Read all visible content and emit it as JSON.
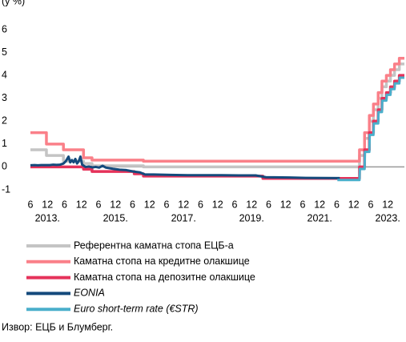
{
  "chart_data": {
    "type": "line",
    "y_label": "(у %)",
    "xlim": [
      2012.88,
      2023.87
    ],
    "ylim": [
      -1,
      6
    ],
    "yticks": [
      -1,
      0,
      1,
      2,
      3,
      4,
      5,
      6
    ],
    "xticks": [
      {
        "value": 2012.88,
        "label": "6"
      },
      {
        "value": 2013.38,
        "label": "12"
      },
      {
        "value": 2013.88,
        "label": "6"
      },
      {
        "value": 2014.38,
        "label": "12"
      },
      {
        "value": 2014.88,
        "label": "6"
      },
      {
        "value": 2015.38,
        "label": "12"
      },
      {
        "value": 2015.88,
        "label": "6"
      },
      {
        "value": 2016.38,
        "label": "12"
      },
      {
        "value": 2016.88,
        "label": "6"
      },
      {
        "value": 2017.38,
        "label": "12"
      },
      {
        "value": 2017.88,
        "label": "6"
      },
      {
        "value": 2018.38,
        "label": "12"
      },
      {
        "value": 2018.88,
        "label": "6"
      },
      {
        "value": 2019.38,
        "label": "12"
      },
      {
        "value": 2019.88,
        "label": "6"
      },
      {
        "value": 2020.38,
        "label": "12"
      },
      {
        "value": 2020.88,
        "label": "6"
      },
      {
        "value": 2021.38,
        "label": "12"
      },
      {
        "value": 2021.88,
        "label": "6"
      },
      {
        "value": 2022.38,
        "label": "12"
      },
      {
        "value": 2022.88,
        "label": "6"
      },
      {
        "value": 2023.38,
        "label": "12"
      }
    ],
    "year_labels": [
      {
        "value": 2013.38,
        "label": "2013."
      },
      {
        "value": 2015.38,
        "label": "2015."
      },
      {
        "value": 2017.38,
        "label": "2017."
      },
      {
        "value": 2019.38,
        "label": "2019."
      },
      {
        "value": 2021.38,
        "label": "2021."
      },
      {
        "value": 2023.38,
        "label": "2023."
      }
    ],
    "series": [
      {
        "name": "Референтна каматна стопа ЕЦБ-а",
        "color": "#c4c4c4",
        "step": true,
        "x": [
          2012.88,
          2013.35,
          2013.85,
          2014.44,
          2014.69,
          2016.2,
          2022.55,
          2022.7,
          2022.84,
          2022.96,
          2023.1,
          2023.21,
          2023.34,
          2023.46,
          2023.58,
          2023.72,
          2023.87
        ],
        "values": [
          0.75,
          0.5,
          0.25,
          0.15,
          0.05,
          0,
          0.5,
          1.25,
          2.0,
          2.5,
          3.0,
          3.5,
          3.75,
          4.0,
          4.25,
          4.5,
          4.5
        ]
      },
      {
        "name": "Каматна стопа на кредитне олакшице",
        "color": "#fa8089",
        "step": true,
        "x": [
          2012.88,
          2013.35,
          2013.85,
          2014.44,
          2014.69,
          2016.2,
          2022.55,
          2022.7,
          2022.84,
          2022.96,
          2023.1,
          2023.21,
          2023.34,
          2023.46,
          2023.58,
          2023.72,
          2023.87
        ],
        "values": [
          1.5,
          1.0,
          0.75,
          0.4,
          0.3,
          0.25,
          0.75,
          1.5,
          2.25,
          2.75,
          3.25,
          3.75,
          4.0,
          4.25,
          4.5,
          4.75,
          4.75
        ]
      },
      {
        "name": "Каматна стопа на депозитне олакшице",
        "color": "#e5325a",
        "step": true,
        "x": [
          2012.88,
          2014.44,
          2014.69,
          2015.93,
          2016.2,
          2019.71,
          2022.55,
          2022.7,
          2022.84,
          2022.96,
          2023.1,
          2023.21,
          2023.34,
          2023.46,
          2023.58,
          2023.72,
          2023.87
        ],
        "values": [
          0,
          -0.1,
          -0.2,
          -0.3,
          -0.4,
          -0.5,
          0,
          0.75,
          1.5,
          2.0,
          2.5,
          3.0,
          3.25,
          3.5,
          3.75,
          4.0,
          4.0
        ]
      },
      {
        "name": "EONIA",
        "color": "#144a7c",
        "italic": true,
        "x": [
          2012.88,
          2013.0,
          2013.1,
          2013.2,
          2013.3,
          2013.45,
          2013.55,
          2013.65,
          2013.75,
          2013.85,
          2013.92,
          2014.0,
          2014.05,
          2014.1,
          2014.15,
          2014.2,
          2014.25,
          2014.3,
          2014.35,
          2014.4,
          2014.45,
          2014.5,
          2014.6,
          2014.7,
          2014.8,
          2014.9,
          2015.0,
          2015.1,
          2015.3,
          2015.5,
          2015.7,
          2015.9,
          2016.1,
          2016.25,
          2016.5,
          2017.0,
          2017.5,
          2018.0,
          2018.5,
          2019.0,
          2019.5,
          2019.8,
          2020.5,
          2021.0,
          2021.97
        ],
        "values": [
          0.07,
          0.08,
          0.07,
          0.08,
          0.08,
          0.08,
          0.1,
          0.09,
          0.1,
          0.15,
          0.25,
          0.45,
          0.2,
          0.3,
          0.2,
          0.35,
          0.15,
          0.25,
          0.45,
          0.1,
          0.05,
          0.0,
          0.02,
          -0.02,
          0.0,
          -0.03,
          0.05,
          -0.03,
          -0.08,
          -0.12,
          -0.14,
          -0.2,
          -0.24,
          -0.33,
          -0.33,
          -0.35,
          -0.36,
          -0.36,
          -0.36,
          -0.37,
          -0.37,
          -0.45,
          -0.46,
          -0.48,
          -0.49
        ]
      },
      {
        "name": "Euro short-term rate (€STR)",
        "color": "#4aafcb",
        "italic": true,
        "x": [
          2021.9,
          2022.55,
          2022.56,
          2022.7,
          2022.71,
          2022.84,
          2022.85,
          2022.96,
          2022.97,
          2023.1,
          2023.11,
          2023.21,
          2023.22,
          2023.34,
          2023.35,
          2023.46,
          2023.47,
          2023.58,
          2023.59,
          2023.72,
          2023.73,
          2023.87
        ],
        "values": [
          -0.57,
          -0.57,
          -0.09,
          -0.09,
          0.66,
          0.66,
          1.4,
          1.4,
          1.9,
          1.9,
          2.4,
          2.4,
          2.9,
          2.9,
          3.15,
          3.15,
          3.4,
          3.4,
          3.65,
          3.65,
          3.9,
          3.9
        ]
      }
    ],
    "source": "Извор: ЕЦБ и Блумберг."
  }
}
